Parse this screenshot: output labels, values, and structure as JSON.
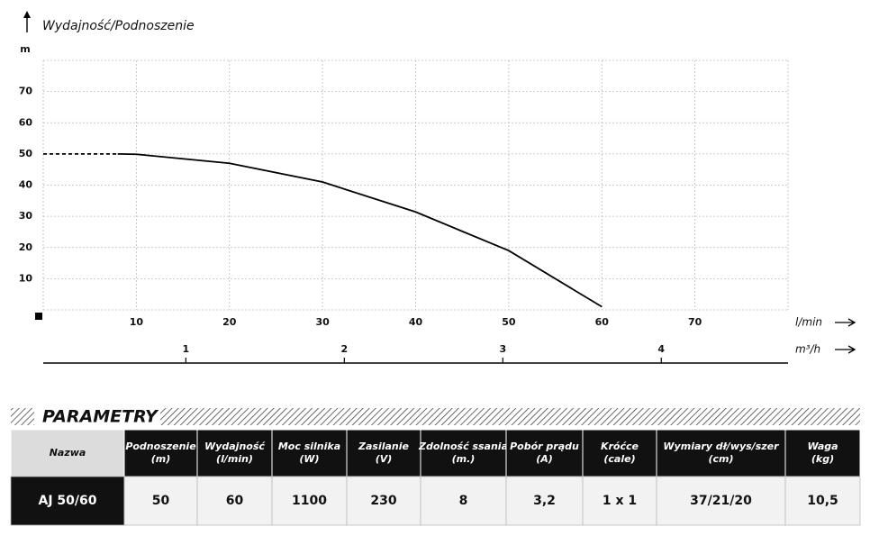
{
  "chart_data": {
    "type": "line",
    "title": "Wydajność/Podnoszenie",
    "y_label": "m",
    "x_label": "l/min",
    "x2_label": "m³/h",
    "series": [
      {
        "color": "#000000",
        "dashed": true,
        "x": [
          0,
          8
        ],
        "values": [
          50,
          50
        ]
      },
      {
        "color": "#000000",
        "dashed": false,
        "x": [
          8,
          10,
          20,
          30,
          40,
          50,
          60
        ],
        "values": [
          50,
          49.9,
          47,
          41,
          31.4,
          19,
          1
        ]
      }
    ],
    "xlim": [
      0,
      80
    ],
    "xticks": [
      10,
      20,
      30,
      40,
      50,
      60,
      70
    ],
    "ylim": [
      0,
      80
    ],
    "yticks": [
      10,
      20,
      30,
      40,
      50,
      60,
      70
    ],
    "x2lim": [
      0.1,
      4.8
    ],
    "x2ticks": [
      1,
      2,
      3,
      4
    ],
    "grid": true
  },
  "table": {
    "title": "PARAMETRY",
    "header": [
      [
        "Nazwa"
      ],
      [
        "Podnoszenie",
        "(m)"
      ],
      [
        "Wydajność",
        "(l/min)"
      ],
      [
        "Moc silnika",
        "(W)"
      ],
      [
        "Zasilanie",
        "(V)"
      ],
      [
        "Zdolność ssania",
        "(m.)"
      ],
      [
        "Pobór prądu",
        "(A)"
      ],
      [
        "Króćce",
        "(cale)"
      ],
      [
        "Wymiary dł/wys/szer",
        "(cm)"
      ],
      [
        "Waga",
        "(kg)"
      ]
    ],
    "rows": [
      [
        "AJ 50/60",
        "50",
        "60",
        "1100",
        "230",
        "8",
        "3,2",
        "1 x 1",
        "37/21/20",
        "10,5"
      ]
    ]
  }
}
